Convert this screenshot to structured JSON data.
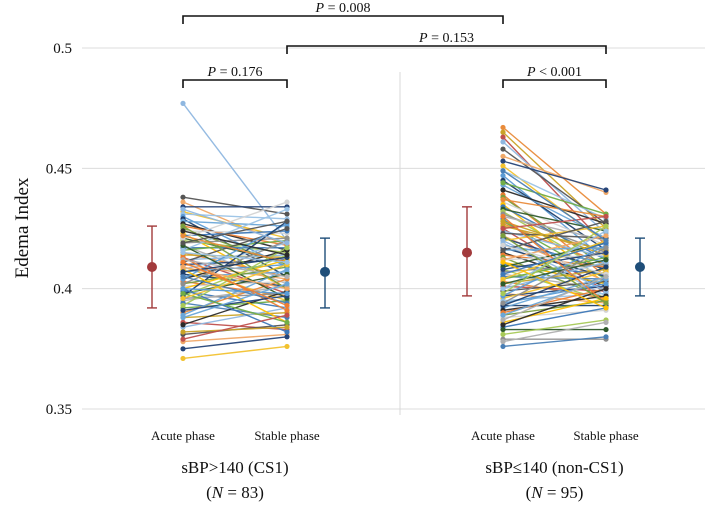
{
  "chart_data": {
    "type": "scatter",
    "title": "",
    "ylabel": "Edema Index",
    "ylim": [
      0.35,
      0.5
    ],
    "yticks": [
      {
        "value": 0.35,
        "label": "0.35"
      },
      {
        "value": 0.4,
        "label": "0.4"
      },
      {
        "value": 0.45,
        "label": "0.45"
      },
      {
        "value": 0.5,
        "label": "0.5"
      }
    ],
    "grid": true,
    "phase_labels": [
      "Acute phase",
      "Stable phase"
    ],
    "groups": [
      {
        "name_line1": "sBP>140 (CS1)",
        "n_prefix": "(",
        "n_label": "N",
        "n_text": " = 83)",
        "n": 83,
        "summary": {
          "acute": {
            "mean": 0.409,
            "low": 0.392,
            "high": 0.426,
            "color": "#a23a3c"
          },
          "stable": {
            "mean": 0.407,
            "low": 0.392,
            "high": 0.421,
            "color": "#1f4e79"
          }
        },
        "paired": [
          [
            0.477,
            0.42
          ],
          [
            0.438,
            0.431
          ],
          [
            0.436,
            0.418
          ],
          [
            0.434,
            0.434
          ],
          [
            0.432,
            0.421
          ],
          [
            0.431,
            0.429
          ],
          [
            0.43,
            0.409
          ],
          [
            0.429,
            0.405
          ],
          [
            0.428,
            0.426
          ],
          [
            0.427,
            0.416
          ],
          [
            0.426,
            0.418
          ],
          [
            0.425,
            0.41
          ],
          [
            0.424,
            0.423
          ],
          [
            0.423,
            0.4
          ],
          [
            0.422,
            0.424
          ],
          [
            0.421,
            0.411
          ],
          [
            0.42,
            0.415
          ],
          [
            0.419,
            0.421
          ],
          [
            0.418,
            0.402
          ],
          [
            0.417,
            0.417
          ],
          [
            0.416,
            0.42
          ],
          [
            0.415,
            0.405
          ],
          [
            0.414,
            0.413
          ],
          [
            0.413,
            0.398
          ],
          [
            0.412,
            0.414
          ],
          [
            0.411,
            0.425
          ],
          [
            0.41,
            0.404
          ],
          [
            0.41,
            0.412
          ],
          [
            0.409,
            0.395
          ],
          [
            0.408,
            0.419
          ],
          [
            0.407,
            0.41
          ],
          [
            0.406,
            0.401
          ],
          [
            0.405,
            0.407
          ],
          [
            0.404,
            0.416
          ],
          [
            0.403,
            0.397
          ],
          [
            0.402,
            0.409
          ],
          [
            0.401,
            0.403
          ],
          [
            0.4,
            0.412
          ],
          [
            0.399,
            0.392
          ],
          [
            0.398,
            0.406
          ],
          [
            0.397,
            0.414
          ],
          [
            0.396,
            0.398
          ],
          [
            0.395,
            0.401
          ],
          [
            0.394,
            0.388
          ],
          [
            0.392,
            0.395
          ],
          [
            0.39,
            0.404
          ],
          [
            0.388,
            0.39
          ],
          [
            0.386,
            0.383
          ],
          [
            0.384,
            0.392
          ],
          [
            0.381,
            0.385
          ],
          [
            0.378,
            0.381
          ],
          [
            0.375,
            0.38
          ],
          [
            0.371,
            0.376
          ],
          [
            0.416,
            0.433
          ],
          [
            0.404,
            0.427
          ],
          [
            0.397,
            0.428
          ],
          [
            0.389,
            0.408
          ],
          [
            0.385,
            0.399
          ],
          [
            0.413,
            0.391
          ],
          [
            0.426,
            0.4
          ],
          [
            0.421,
            0.436
          ],
          [
            0.408,
            0.386
          ],
          [
            0.4,
            0.382
          ],
          [
            0.418,
            0.396
          ],
          [
            0.393,
            0.417
          ],
          [
            0.402,
            0.42
          ],
          [
            0.412,
            0.405
          ],
          [
            0.405,
            0.394
          ],
          [
            0.398,
            0.386
          ],
          [
            0.422,
            0.411
          ],
          [
            0.382,
            0.384
          ],
          [
            0.379,
            0.389
          ],
          [
            0.433,
            0.419
          ],
          [
            0.419,
            0.428
          ],
          [
            0.409,
            0.4
          ],
          [
            0.391,
            0.397
          ],
          [
            0.396,
            0.41
          ],
          [
            0.415,
            0.411
          ],
          [
            0.4,
            0.398
          ],
          [
            0.407,
            0.413
          ],
          [
            0.388,
            0.402
          ],
          [
            0.424,
            0.414
          ],
          [
            0.411,
            0.393
          ]
        ]
      },
      {
        "name_line1": "sBP≤140 (non-CS1)",
        "n_prefix": "(",
        "n_label": "N",
        "n_text": " = 95)",
        "n": 95,
        "summary": {
          "acute": {
            "mean": 0.415,
            "low": 0.397,
            "high": 0.434,
            "color": "#a23a3c"
          },
          "stable": {
            "mean": 0.409,
            "low": 0.397,
            "high": 0.421,
            "color": "#1f4e79"
          }
        },
        "paired": [
          [
            0.467,
            0.431
          ],
          [
            0.465,
            0.425
          ],
          [
            0.463,
            0.418
          ],
          [
            0.461,
            0.423
          ],
          [
            0.458,
            0.427
          ],
          [
            0.455,
            0.44
          ],
          [
            0.453,
            0.441
          ],
          [
            0.451,
            0.419
          ],
          [
            0.449,
            0.429
          ],
          [
            0.447,
            0.412
          ],
          [
            0.445,
            0.416
          ],
          [
            0.443,
            0.421
          ],
          [
            0.441,
            0.427
          ],
          [
            0.439,
            0.405
          ],
          [
            0.438,
            0.409
          ],
          [
            0.436,
            0.418
          ],
          [
            0.435,
            0.402
          ],
          [
            0.434,
            0.412
          ],
          [
            0.433,
            0.424
          ],
          [
            0.432,
            0.407
          ],
          [
            0.431,
            0.415
          ],
          [
            0.43,
            0.42
          ],
          [
            0.429,
            0.398
          ],
          [
            0.428,
            0.404
          ],
          [
            0.427,
            0.41
          ],
          [
            0.426,
            0.416
          ],
          [
            0.425,
            0.399
          ],
          [
            0.424,
            0.413
          ],
          [
            0.423,
            0.421
          ],
          [
            0.422,
            0.403
          ],
          [
            0.421,
            0.408
          ],
          [
            0.42,
            0.426
          ],
          [
            0.419,
            0.397
          ],
          [
            0.418,
            0.411
          ],
          [
            0.417,
            0.405
          ],
          [
            0.416,
            0.417
          ],
          [
            0.415,
            0.401
          ],
          [
            0.414,
            0.409
          ],
          [
            0.413,
            0.396
          ],
          [
            0.412,
            0.414
          ],
          [
            0.411,
            0.402
          ],
          [
            0.41,
            0.406
          ],
          [
            0.409,
            0.419
          ],
          [
            0.408,
            0.395
          ],
          [
            0.407,
            0.41
          ],
          [
            0.406,
            0.4
          ],
          [
            0.405,
            0.404
          ],
          [
            0.404,
            0.413
          ],
          [
            0.403,
            0.396
          ],
          [
            0.402,
            0.408
          ],
          [
            0.401,
            0.399
          ],
          [
            0.4,
            0.411
          ],
          [
            0.399,
            0.403
          ],
          [
            0.398,
            0.394
          ],
          [
            0.397,
            0.401
          ],
          [
            0.396,
            0.407
          ],
          [
            0.395,
            0.398
          ],
          [
            0.394,
            0.402
          ],
          [
            0.393,
            0.393
          ],
          [
            0.392,
            0.405
          ],
          [
            0.391,
            0.397
          ],
          [
            0.39,
            0.4
          ],
          [
            0.389,
            0.395
          ],
          [
            0.388,
            0.391
          ],
          [
            0.386,
            0.396
          ],
          [
            0.384,
            0.392
          ],
          [
            0.383,
            0.383
          ],
          [
            0.381,
            0.387
          ],
          [
            0.379,
            0.379
          ],
          [
            0.378,
            0.386
          ],
          [
            0.376,
            0.38
          ],
          [
            0.444,
            0.431
          ],
          [
            0.437,
            0.43
          ],
          [
            0.428,
            0.414
          ],
          [
            0.425,
            0.43
          ],
          [
            0.42,
            0.399
          ],
          [
            0.416,
            0.428
          ],
          [
            0.412,
            0.422
          ],
          [
            0.408,
            0.415
          ],
          [
            0.404,
            0.42
          ],
          [
            0.4,
            0.424
          ],
          [
            0.397,
            0.418
          ],
          [
            0.393,
            0.409
          ],
          [
            0.389,
            0.404
          ],
          [
            0.385,
            0.4
          ],
          [
            0.43,
            0.394
          ],
          [
            0.422,
            0.394
          ],
          [
            0.418,
            0.406
          ],
          [
            0.411,
            0.392
          ],
          [
            0.406,
            0.419
          ],
          [
            0.402,
            0.412
          ],
          [
            0.398,
            0.426
          ],
          [
            0.394,
            0.417
          ],
          [
            0.387,
            0.405
          ],
          [
            0.449,
            0.42
          ]
        ]
      }
    ],
    "annotations": [
      {
        "label": "P",
        "text": " = 0.008",
        "between": "CS1 acute vs non-CS1 acute"
      },
      {
        "label": "P",
        "text": " = 0.153",
        "between": "CS1 stable vs non-CS1 stable"
      },
      {
        "label": "P",
        "text": " = 0.176",
        "between": "CS1 acute vs CS1 stable"
      },
      {
        "label": "P",
        "text": " < 0.001",
        "between": "non-CS1 acute vs non-CS1 stable"
      }
    ]
  }
}
